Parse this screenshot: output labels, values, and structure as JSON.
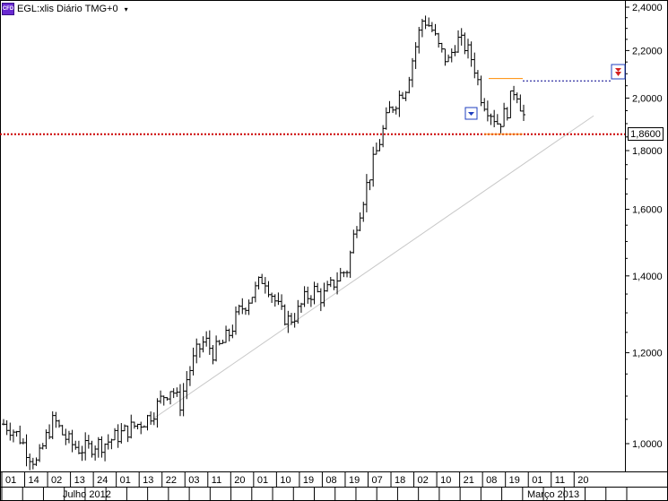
{
  "header": {
    "badge": "CFD",
    "title": "EGL:xlis Diário TMG+0",
    "caret": "▾"
  },
  "current_price_label": "1,8600",
  "colors": {
    "bars": "#000000",
    "support_line": "#cc0000",
    "trend_line": "#c8c8c8",
    "resistance_line": "#ff8c00",
    "dashed_blue": "#00008b",
    "marker_blue": "#1f3fbf",
    "alert_red": "#d42020"
  },
  "chart_data": {
    "type": "ohlc",
    "title": "",
    "xlabel": "",
    "ylabel": "",
    "y_scale": "log",
    "ylim": [
      0.95,
      2.42
    ],
    "grid": false,
    "y_ticks": [
      "1,0000",
      "1,2000",
      "1,4000",
      "1,6000",
      "1,8000",
      "2,0000",
      "2,2000",
      "2,4000"
    ],
    "y_tick_values": [
      1.0,
      1.2,
      1.4,
      1.6,
      1.8,
      2.0,
      2.2,
      2.4
    ],
    "x_day_labels": [
      "01",
      "14",
      "02",
      "13",
      "24",
      "01",
      "13",
      "22",
      "03",
      "11",
      "20",
      "01",
      "10",
      "19",
      "08",
      "19",
      "07",
      "18",
      "02",
      "10",
      "21",
      "08",
      "19",
      "01",
      "11",
      "20"
    ],
    "x_month_labels": [
      "Julho 2012",
      "Março 2013"
    ],
    "support_level": 1.86,
    "resistance_level": 2.08,
    "close_series": [
      1.04,
      1.03,
      1.01,
      0.98,
      0.96,
      1.01,
      1.05,
      1.02,
      1.0,
      0.99,
      0.99,
      1.0,
      1.0,
      1.01,
      1.02,
      1.03,
      1.04,
      1.05,
      1.07,
      1.1,
      1.12,
      1.08,
      1.15,
      1.2,
      1.23,
      1.2,
      1.22,
      1.25,
      1.3,
      1.33,
      1.36,
      1.4,
      1.35,
      1.3,
      1.28,
      1.3,
      1.34,
      1.36,
      1.34,
      1.37,
      1.4,
      1.42,
      1.55,
      1.65,
      1.75,
      1.85,
      1.95,
      2.0,
      2.05,
      2.2,
      2.35,
      2.3,
      2.2,
      2.15,
      2.25,
      2.22,
      2.15,
      2.0,
      1.95,
      1.9,
      1.95,
      2.05,
      1.93
    ]
  }
}
